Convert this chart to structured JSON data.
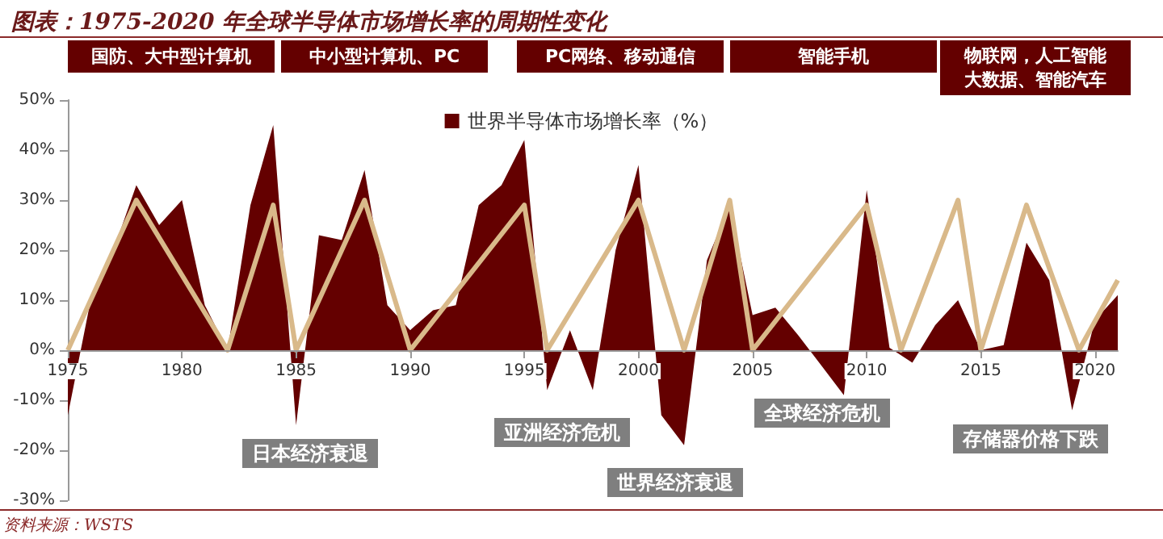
{
  "chart_data": {
    "type": "area",
    "title": "图表：1975-2020 年全球半导体市场增长率的周期性变化",
    "x": [
      1975,
      1976,
      1977,
      1978,
      1979,
      1980,
      1981,
      1982,
      1983,
      1984,
      1985,
      1986,
      1987,
      1988,
      1989,
      1990,
      1991,
      1992,
      1993,
      1994,
      1995,
      1996,
      1997,
      1998,
      1999,
      2000,
      2001,
      2002,
      2003,
      2004,
      2005,
      2006,
      2007,
      2008,
      2009,
      2010,
      2011,
      2012,
      2013,
      2014,
      2015,
      2016,
      2017,
      2018,
      2019,
      2020,
      2021
    ],
    "series": [
      {
        "name": "世界半导体市场增长率（%）",
        "color": "#640000",
        "values": [
          -13,
          10,
          20,
          33,
          25,
          30,
          9,
          0,
          29,
          45,
          -15,
          23,
          22,
          36,
          9,
          4,
          8,
          9,
          29,
          33,
          42,
          -8,
          4,
          -8,
          20,
          37,
          -13,
          -19,
          18,
          29,
          7,
          8.5,
          3,
          -3,
          -9,
          32,
          0.5,
          -2.5,
          5,
          10,
          0,
          1,
          21.5,
          14,
          -12,
          6,
          11
        ]
      },
      {
        "type": "line",
        "color": "#d9b98a",
        "x": [
          1975,
          1978,
          1982,
          1984,
          1985,
          1988,
          1990,
          1995,
          1996,
          2000,
          2002,
          2004,
          2005,
          2010,
          2011.5,
          2014,
          2015,
          2017,
          2019.3,
          2021
        ],
        "values": [
          0,
          30,
          0,
          29,
          0,
          30,
          0,
          29,
          0,
          30,
          0,
          30,
          0,
          29,
          0,
          30,
          0,
          29,
          0,
          14
        ]
      }
    ],
    "xlim": [
      1975,
      2021
    ],
    "xticks": [
      1975,
      1980,
      1985,
      1990,
      1995,
      2000,
      2005,
      2010,
      2015,
      2020
    ],
    "ylim": [
      -30,
      50
    ],
    "yticks": [
      {
        "value": -30,
        "label": "-30%"
      },
      {
        "value": -20,
        "label": "-20%"
      },
      {
        "value": -10,
        "label": "-10%"
      },
      {
        "value": 0,
        "label": "0%"
      },
      {
        "value": 10,
        "label": "10%"
      },
      {
        "value": 20,
        "label": "20%"
      },
      {
        "value": 30,
        "label": "30%"
      },
      {
        "value": 40,
        "label": "40%"
      },
      {
        "value": 50,
        "label": "50%"
      }
    ],
    "legend": "top",
    "marker": "none",
    "line_style": "solid",
    "annotations": [
      "国防、大中型计算机",
      "中小型计算机、PC",
      "PC网络、移动通信",
      "智能手机",
      "物联网，人工智能大数据、智能汽车",
      "日本经济衰退",
      "亚洲经济危机",
      "世界经济衰退",
      "全球经济危机",
      "存储器价格下跌",
      "资料来源：WSTS"
    ]
  }
}
